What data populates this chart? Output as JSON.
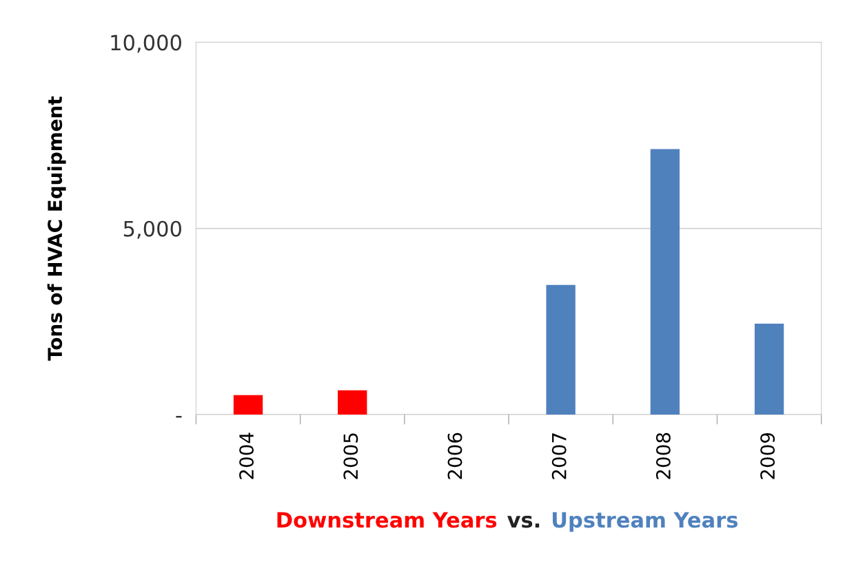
{
  "chart_data": {
    "type": "bar",
    "ylabel": "Tons of HVAC Equipment",
    "categories": [
      "2004",
      "2005",
      "2006",
      "2007",
      "2008",
      "2009"
    ],
    "values": [
      520,
      650,
      0,
      3480,
      7130,
      2440
    ],
    "colors": [
      "#ff0000",
      "#ff0000",
      "#4f81bd",
      "#4f81bd",
      "#4f81bd",
      "#4f81bd"
    ],
    "ylim": [
      0,
      10000
    ],
    "yticks": [
      {
        "value": 0,
        "label": "-"
      },
      {
        "value": 5000,
        "label": "5,000"
      },
      {
        "value": 10000,
        "label": "10,000"
      }
    ],
    "grid": "y",
    "legend": false,
    "annotations": [
      "Downstream Years",
      "vs.",
      "Upstream Years"
    ]
  }
}
